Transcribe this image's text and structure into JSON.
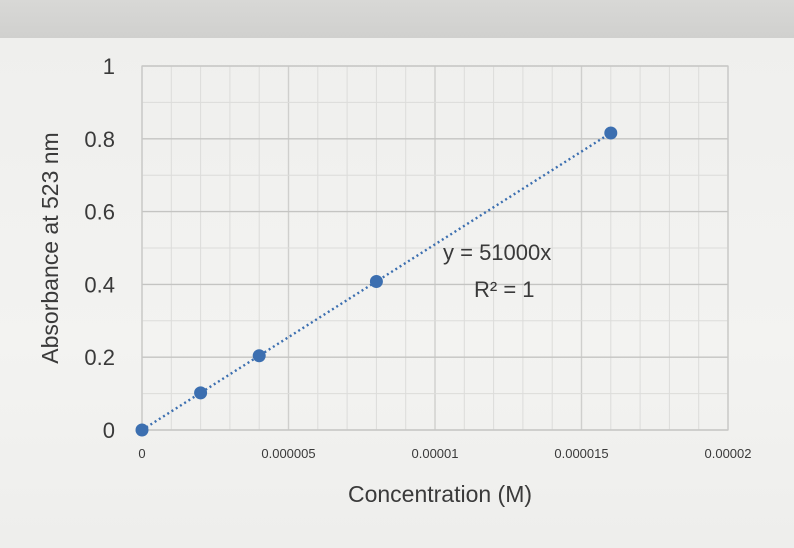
{
  "chart_data": {
    "type": "scatter",
    "title": "",
    "xlabel": "Concentration (M)",
    "ylabel": "Absorbance at 523 nm",
    "xlim": [
      0,
      2e-05
    ],
    "ylim": [
      0,
      1
    ],
    "x_ticks": [
      "0",
      "0.000005",
      "0.00001",
      "0.000015",
      "0.00002"
    ],
    "y_ticks": [
      "0",
      "0.2",
      "0.4",
      "0.6",
      "0.8",
      "1"
    ],
    "grid": true,
    "series": [
      {
        "points": [
          {
            "x": 0,
            "y": 0
          },
          {
            "x": 2e-06,
            "y": 0.102
          },
          {
            "x": 4e-06,
            "y": 0.204
          },
          {
            "x": 8e-06,
            "y": 0.408
          },
          {
            "x": 1.6e-05,
            "y": 0.816
          }
        ],
        "color": "#3c6fb0"
      }
    ],
    "trendline": {
      "type": "linear",
      "style": "dotted",
      "color": "#3c6fb0",
      "equation": "y = 51000x",
      "r_squared": "R² = 1"
    }
  }
}
